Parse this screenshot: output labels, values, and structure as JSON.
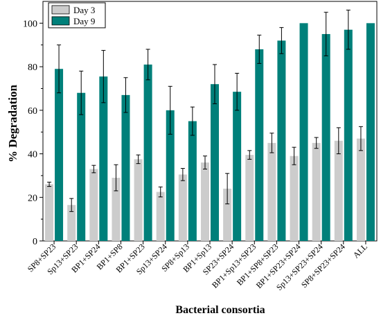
{
  "chart_data": {
    "type": "bar",
    "xlabel": "Bacterial consortia",
    "ylabel": "% Degradation",
    "ylim": [
      0,
      110
    ],
    "yticks": [
      0,
      20,
      40,
      60,
      80,
      100
    ],
    "legend_position": "top-left",
    "grid": false,
    "categories": [
      "SP8+SP23",
      "Sp13+SP23",
      "BP1+SP24",
      "BP1+SP8",
      "BP1+SP23",
      "Sp13+SP24",
      "SP8+Sp13",
      "BP1+Sp13",
      "SP23+SP24",
      "BP1+Sp13+SP23",
      "BP1+SP8+SP23",
      "BP1+SP23+SP24",
      "Sp13+SP23+SP24",
      "SP8+SP23+SP24",
      "ALL"
    ],
    "series": [
      {
        "name": "Day 3",
        "color": "#cccccc",
        "values": [
          26,
          16.5,
          33,
          29,
          37.5,
          22.5,
          30.5,
          36,
          24,
          39.5,
          45,
          39,
          45,
          46,
          47
        ],
        "errors": [
          1,
          3,
          1.7,
          6,
          2,
          2.3,
          2.8,
          3,
          7,
          2,
          4.5,
          4,
          2.5,
          6,
          5.5
        ]
      },
      {
        "name": "Day 9",
        "color": "#00807a",
        "values": [
          79,
          68,
          75.5,
          67,
          81,
          60,
          55,
          72,
          68.5,
          88,
          92,
          100,
          95,
          97,
          100
        ],
        "errors": [
          11,
          10,
          12,
          8,
          7,
          11,
          6.5,
          9,
          8.5,
          6.5,
          6,
          0,
          10,
          9,
          0
        ]
      }
    ]
  }
}
